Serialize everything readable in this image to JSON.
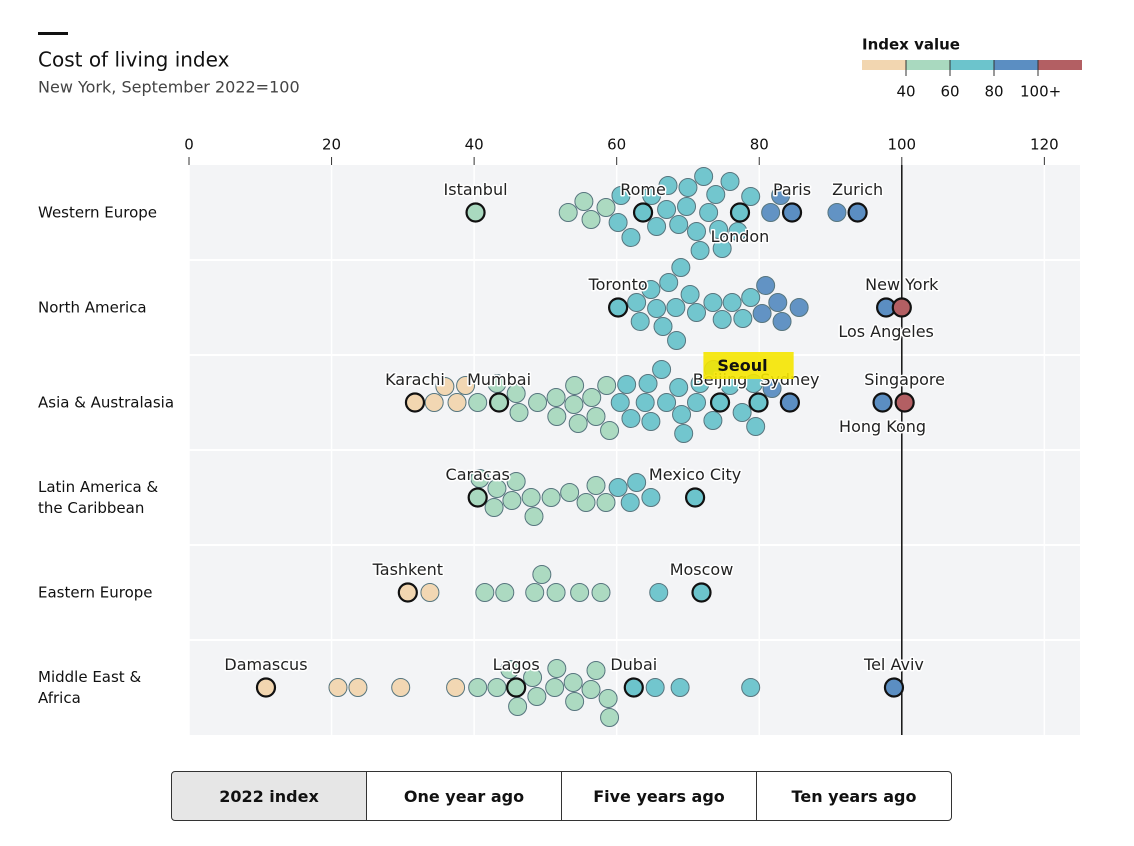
{
  "chart_data": {
    "type": "beeswarm",
    "title": "Cost of living index",
    "subtitle": "New York, September 2022=100",
    "xlim": [
      0,
      125
    ],
    "xticks": [
      0,
      20,
      40,
      60,
      80,
      100,
      120
    ],
    "reference_line": 100,
    "legend": {
      "title": "Index value",
      "ticks": [
        40,
        60,
        80,
        {
          "value": 100,
          "label": "100+"
        }
      ],
      "colors": [
        "#f2d6b0",
        "#a9d9bf",
        "#6cc4cc",
        "#5b8ec2",
        "#b35f63"
      ]
    },
    "groups": [
      {
        "name": "Western Europe",
        "cities": [
          {
            "name": "Istanbul",
            "value": 40.2
          },
          {
            "name": "Rome",
            "value": 63.7
          },
          {
            "name": "London",
            "value": 77.3
          },
          {
            "name": "Paris",
            "value": 84.6
          },
          {
            "name": "Zurich",
            "value": 93.8
          }
        ],
        "values": [
          53.2,
          56.4,
          55.4,
          58.5,
          60.2,
          60.6,
          62,
          64.9,
          65.6,
          67,
          67.2,
          68.7,
          69.8,
          70,
          71.2,
          71.7,
          72.2,
          72.9,
          73.9,
          74.3,
          74.8,
          75.9,
          77,
          78.8,
          81.6,
          83,
          90.9
        ]
      },
      {
        "name": "North America",
        "cities": [
          {
            "name": "Toronto",
            "value": 60.2
          },
          {
            "name": "Los Angeles",
            "value": 97.8
          },
          {
            "name": "New York",
            "value": 100
          }
        ],
        "values": [
          62.8,
          63.3,
          64.8,
          65.6,
          66.5,
          67.3,
          68.3,
          68.4,
          69,
          70.3,
          71.2,
          73.5,
          74.8,
          76.2,
          77.7,
          78.8,
          80.4,
          80.9,
          82.6,
          83.2,
          85.6
        ]
      },
      {
        "name": "Asia & Australasia",
        "cities": [
          {
            "name": "Karachi",
            "value": 31.7
          },
          {
            "name": "Mumbai",
            "value": 43.5
          },
          {
            "name": "Beijing",
            "value": 74.5
          },
          {
            "name": "Seoul",
            "value": 79.9,
            "highlight": "#f5e600"
          },
          {
            "name": "Sydney",
            "value": 84.3
          },
          {
            "name": "Hong Kong",
            "value": 97.3
          },
          {
            "name": "Singapore",
            "value": 100.4
          }
        ],
        "values": [
          34.4,
          35.9,
          37.6,
          38.8,
          40.5,
          43.2,
          45.9,
          46.3,
          48.9,
          51.5,
          51.6,
          54,
          54.1,
          54.6,
          56.5,
          57.1,
          58.6,
          59,
          60.5,
          61.4,
          62,
          64,
          64.4,
          64.8,
          66.3,
          67,
          68.7,
          69.1,
          69.4,
          71.2,
          71.7,
          73.5,
          73.6,
          75.9,
          77.6,
          79.2,
          79.5,
          81.8
        ]
      },
      {
        "name": "Latin America & the Caribbean",
        "cities": [
          {
            "name": "Caracas",
            "value": 40.5
          },
          {
            "name": "Mexico City",
            "value": 71
          }
        ],
        "values": [
          40.8,
          42.8,
          43.2,
          45.3,
          45.9,
          48,
          48.4,
          50.8,
          53.4,
          55.7,
          57.1,
          58.5,
          60.2,
          61.9,
          62.8,
          64.8
        ]
      },
      {
        "name": "Eastern Europe",
        "cities": [
          {
            "name": "Tashkent",
            "value": 30.7
          },
          {
            "name": "Moscow",
            "value": 71.9
          }
        ],
        "values": [
          33.8,
          41.5,
          44.3,
          48.5,
          49.5,
          51.5,
          54.8,
          57.8,
          65.9
        ]
      },
      {
        "name": "Middle East & Africa",
        "cities": [
          {
            "name": "Damascus",
            "value": 10.8
          },
          {
            "name": "Lagos",
            "value": 45.9
          },
          {
            "name": "Dubai",
            "value": 62.4
          },
          {
            "name": "Tel Aviv",
            "value": 98.9
          }
        ],
        "values": [
          20.9,
          23.7,
          29.7,
          37.4,
          40.5,
          43.2,
          45,
          46.1,
          48.2,
          48.8,
          51.3,
          51.6,
          53.9,
          54.1,
          56.4,
          57.1,
          58.8,
          59,
          65.4,
          68.9,
          78.8
        ]
      }
    ]
  },
  "controls": {
    "options": [
      "2022 index",
      "One year ago",
      "Five years ago",
      "Ten years ago"
    ],
    "selected": 0
  }
}
